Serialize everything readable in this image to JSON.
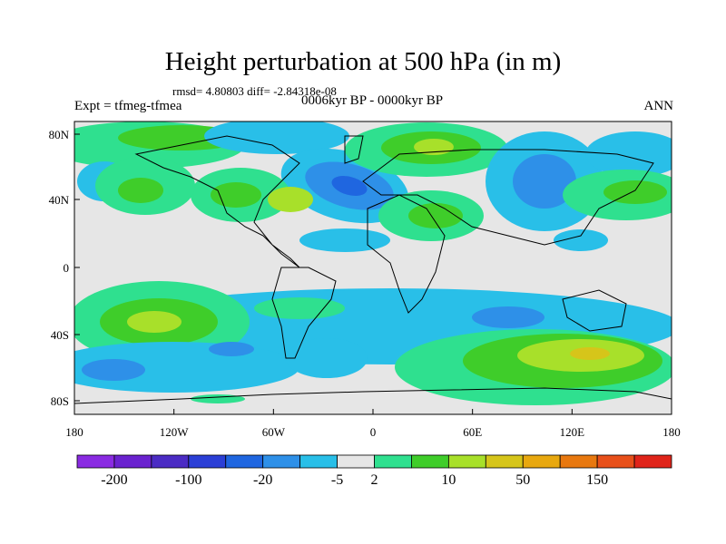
{
  "title": "Height perturbation at 500 hPa (in m)",
  "stats": "rmsd= 4.80803 diff= -2.84318e-08",
  "expt": "Expt = tfmeg-tfmea",
  "period": "0006kyr BP - 0000kyr BP",
  "season": "ANN",
  "lat_ticks": [
    "80N",
    "40N",
    "0",
    "40S",
    "80S"
  ],
  "lon_ticks": [
    "180",
    "120W",
    "60W",
    "0",
    "60E",
    "120E",
    "180"
  ],
  "colorbar": {
    "colors": [
      "#8a2be2",
      "#6a22cf",
      "#4b2cc4",
      "#2b3fd6",
      "#1f66e0",
      "#2e90e8",
      "#29bfe8",
      "#e6e6e6",
      "#2fe08f",
      "#3fcd2a",
      "#a8e02a",
      "#d6c51a",
      "#e8a80f",
      "#e8780f",
      "#e8501a",
      "#e0241a"
    ],
    "labels": [
      "-200",
      "-100",
      "-20",
      "-5",
      "2",
      "10",
      "50",
      "150"
    ],
    "label_after_box": [
      0,
      2,
      4,
      6,
      7,
      9,
      11,
      13
    ]
  }
}
